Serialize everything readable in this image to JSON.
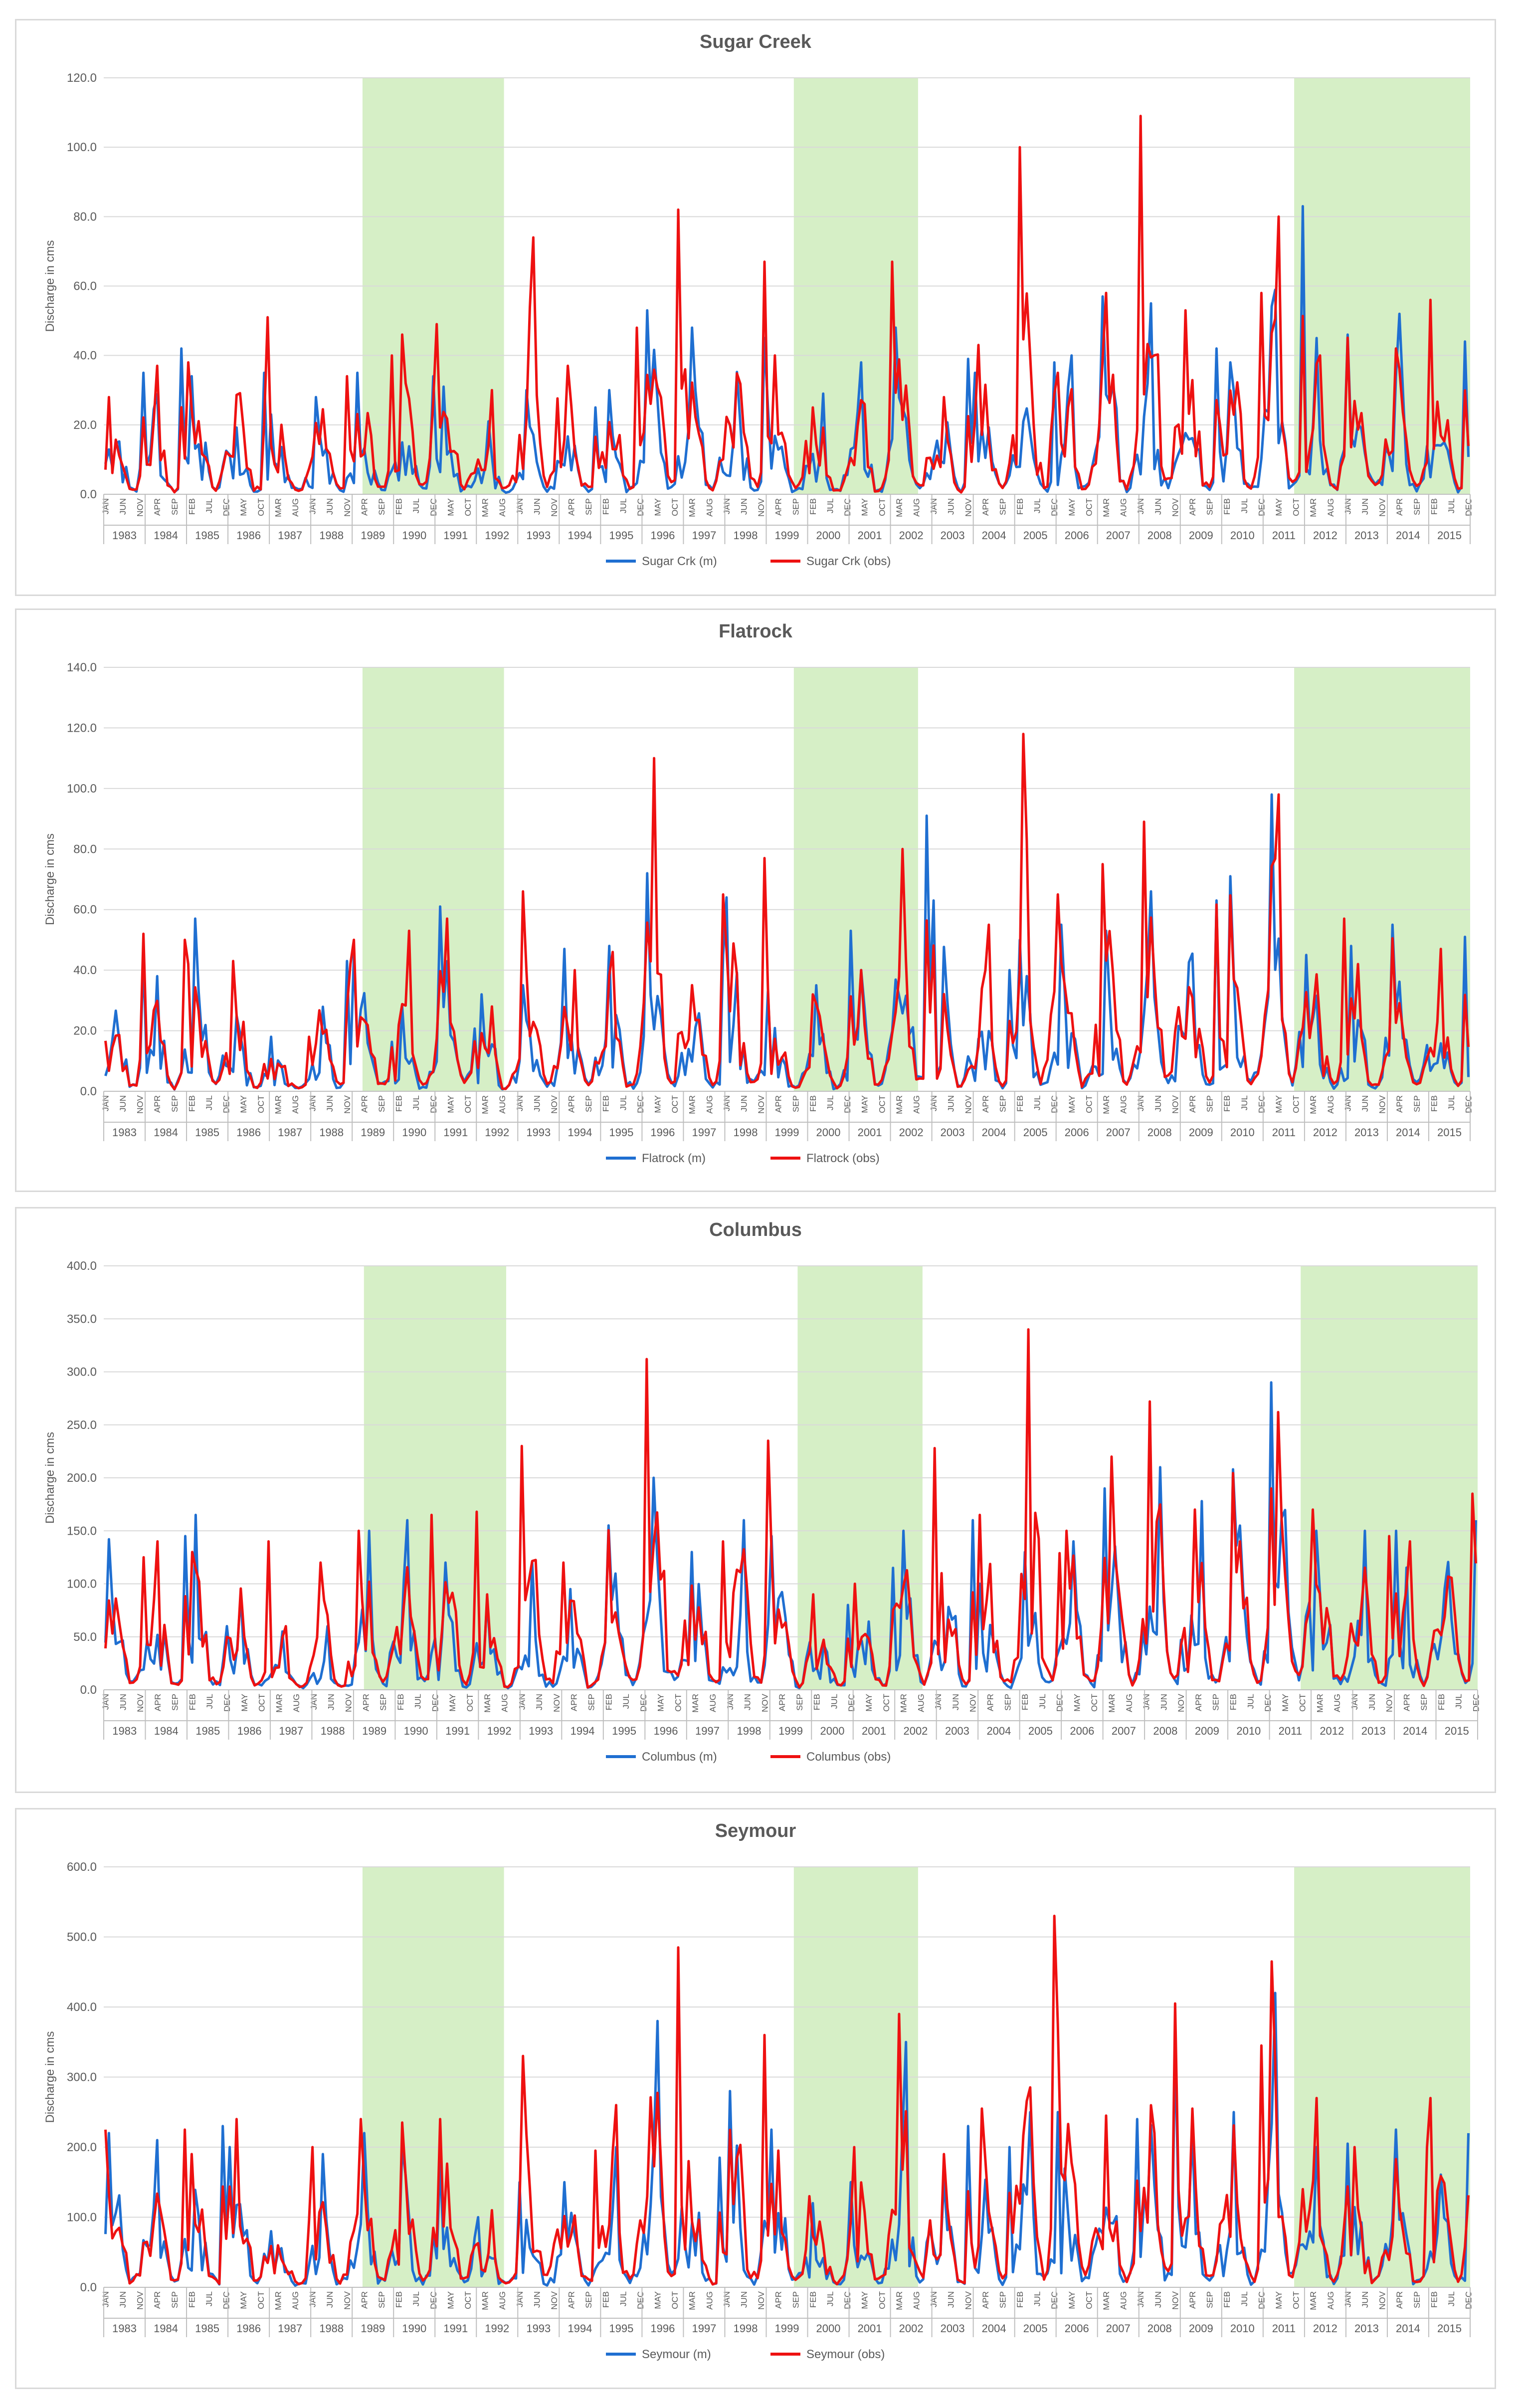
{
  "colors": {
    "modeled": "#1f6fd1",
    "observed": "#ee1111",
    "shade": "#d6efc6",
    "grid": "#d9d9d9",
    "text": "#595959"
  },
  "chart_data": [
    {
      "type": "line",
      "title": "Sugar Creek",
      "ylabel": "Discharge in cms",
      "ylim": [
        0,
        120
      ],
      "ytick_step": 20,
      "yticks": [
        "0.0",
        "20.0",
        "40.0",
        "60.0",
        "80.0",
        "100.0",
        "120.0"
      ],
      "years": [
        "1983",
        "1984",
        "1985",
        "1986",
        "1987",
        "1988",
        "1989",
        "1990",
        "1991",
        "1992",
        "1993",
        "1994",
        "1995",
        "1996",
        "1997",
        "1998",
        "1999",
        "2000",
        "2001",
        "2002",
        "2003",
        "2004",
        "2005",
        "2006",
        "2007",
        "2008",
        "2009",
        "2010",
        "2011",
        "2012",
        "2013",
        "2014",
        "2015"
      ],
      "month_ticks": [
        "JAN",
        "JUN",
        "NOV",
        "APR",
        "SEP",
        "FEB",
        "JUL",
        "DEC",
        "MAY",
        "OCT",
        "MAR",
        "AUG",
        "JAN",
        "JUN",
        "NOV",
        "APR",
        "SEP",
        "FEB",
        "JUL",
        "DEC",
        "MAY",
        "OCT",
        "MAR",
        "AUG",
        "JAN",
        "JUN",
        "NOV",
        "APR",
        "SEP",
        "FEB",
        "JUL",
        "DEC",
        "MAY",
        "OCT",
        "MAR",
        "AUG",
        "JAN",
        "JUN",
        "NOV",
        "APR",
        "SEP",
        "FEB",
        "JUL",
        "DEC",
        "MAY",
        "OCT",
        "MAR",
        "AUG",
        "JAN",
        "JUN",
        "NOV",
        "APR",
        "SEP",
        "FEB",
        "JUL",
        "DEC",
        "MAY",
        "OCT",
        "MAR",
        "AUG",
        "JAN",
        "JUN",
        "NOV",
        "APR",
        "SEP",
        "FEB",
        "JUL",
        "DEC",
        "MAY",
        "OCT",
        "MAR",
        "AUG",
        "JAN",
        "JUN",
        "NOV",
        "APR",
        "SEP",
        "FEB",
        "JUL",
        "DEC"
      ],
      "calibration_periods": [
        [
          "1989-04",
          "1992-08"
        ],
        [
          "1999-09",
          "2002-08"
        ],
        [
          "2011-10",
          "2015-12"
        ]
      ],
      "peaks_obs": {
        "1983": 28,
        "1984": 37,
        "1985": 38,
        "1986": 51,
        "1987": 20,
        "1988": 34,
        "1989": 40,
        "1990": 46,
        "1991": 49,
        "1992": 30,
        "1993": 74,
        "1994": 37,
        "1995": 48,
        "1996": 82,
        "1997": 36,
        "1998": 67,
        "1999": 40,
        "2000": 25,
        "2001": 26,
        "2002": 67,
        "2003": 28,
        "2004": 43,
        "2005": 100,
        "2006": 35,
        "2007": 58,
        "2008": 109,
        "2009": 53,
        "2010": 58,
        "2011": 80,
        "2012": 40,
        "2013": 44,
        "2014": 42,
        "2015": 56
      },
      "peaks_model": {
        "1983": 35,
        "1984": 42,
        "1985": 34,
        "1986": 35,
        "1987": 23,
        "1988": 28,
        "1989": 35,
        "1990": 34,
        "1991": 31,
        "1992": 21,
        "1993": 30,
        "1994": 25,
        "1995": 30,
        "1996": 53,
        "1997": 48,
        "1998": 45,
        "1999": 25,
        "2000": 29,
        "2001": 38,
        "2002": 48,
        "2003": 39,
        "2004": 35,
        "2005": 38,
        "2006": 40,
        "2007": 57,
        "2008": 55,
        "2009": 42,
        "2010": 38,
        "2011": 83,
        "2012": 45,
        "2013": 46,
        "2014": 52,
        "2015": 44
      },
      "series": [
        {
          "name": "Sugar Crk (m)",
          "color": "#1f6fd1"
        },
        {
          "name": "Sugar Crk (obs)",
          "color": "#ee1111"
        }
      ]
    },
    {
      "type": "line",
      "title": "Flatrock",
      "ylabel": "Discharge in cms",
      "ylim": [
        0,
        140
      ],
      "ytick_step": 20,
      "yticks": [
        "0.0",
        "20.0",
        "40.0",
        "60.0",
        "80.0",
        "100.0",
        "120.0",
        "140.0"
      ],
      "years": [
        "1983",
        "1984",
        "1985",
        "1986",
        "1987",
        "1988",
        "1989",
        "1990",
        "1991",
        "1992",
        "1993",
        "1994",
        "1995",
        "1996",
        "1997",
        "1998",
        "1999",
        "2000",
        "2001",
        "2002",
        "2003",
        "2004",
        "2005",
        "2006",
        "2007",
        "2008",
        "2009",
        "2010",
        "2011",
        "2012",
        "2013",
        "2014",
        "2015"
      ],
      "month_ticks": [
        "JAN",
        "JUN",
        "NOV",
        "APR",
        "SEP",
        "FEB",
        "JUL",
        "DEC",
        "MAY",
        "OCT",
        "MAR",
        "AUG",
        "JAN",
        "JUN",
        "NOV",
        "APR",
        "SEP",
        "FEB",
        "JUL",
        "DEC",
        "MAY",
        "OCT",
        "MAR",
        "AUG",
        "JAN",
        "JUN",
        "NOV",
        "APR",
        "SEP",
        "FEB",
        "JUL",
        "DEC",
        "MAY",
        "OCT",
        "MAR",
        "AUG",
        "JAN",
        "JUN",
        "NOV",
        "APR",
        "SEP",
        "FEB",
        "JUL",
        "DEC",
        "MAY",
        "OCT",
        "MAR",
        "AUG",
        "JAN",
        "JUN",
        "NOV",
        "APR",
        "SEP",
        "FEB",
        "JUL",
        "DEC",
        "MAY",
        "OCT",
        "MAR",
        "AUG",
        "JAN",
        "JUN",
        "NOV",
        "APR",
        "SEP",
        "FEB",
        "JUL",
        "DEC",
        "MAY",
        "OCT",
        "MAR",
        "AUG",
        "JAN",
        "JUN",
        "NOV",
        "APR",
        "SEP",
        "FEB",
        "JUL",
        "DEC"
      ],
      "calibration_periods": [
        [
          "1989-04",
          "1992-08"
        ],
        [
          "1999-09",
          "2002-08"
        ],
        [
          "2011-10",
          "2015-12"
        ]
      ],
      "peaks_obs": {
        "1983": 52,
        "1984": 50,
        "1985": 42,
        "1986": 43,
        "1987": 18,
        "1988": 42,
        "1989": 50,
        "1990": 53,
        "1991": 57,
        "1992": 28,
        "1993": 66,
        "1994": 40,
        "1995": 46,
        "1996": 110,
        "1997": 65,
        "1998": 77,
        "1999": 34,
        "2000": 32,
        "2001": 40,
        "2002": 80,
        "2003": 30,
        "2004": 55,
        "2005": 118,
        "2006": 65,
        "2007": 75,
        "2008": 89,
        "2009": 60,
        "2010": 57,
        "2011": 98,
        "2012": 57,
        "2013": 42,
        "2014": 45,
        "2015": 47
      },
      "peaks_model": {
        "1983": 45,
        "1984": 38,
        "1985": 57,
        "1986": 25,
        "1987": 18,
        "1988": 43,
        "1989": 45,
        "1990": 28,
        "1991": 61,
        "1992": 32,
        "1993": 35,
        "1994": 47,
        "1995": 48,
        "1996": 72,
        "1997": 45,
        "1998": 64,
        "1999": 33,
        "2000": 35,
        "2001": 53,
        "2002": 91,
        "2003": 63,
        "2004": 40,
        "2005": 50,
        "2006": 55,
        "2007": 53,
        "2008": 66,
        "2009": 63,
        "2010": 71,
        "2011": 98,
        "2012": 45,
        "2013": 48,
        "2014": 55,
        "2015": 51
      },
      "series": [
        {
          "name": "Flatrock (m)",
          "color": "#1f6fd1"
        },
        {
          "name": "Flatrock (obs)",
          "color": "#ee1111"
        }
      ]
    },
    {
      "type": "line",
      "title": "Columbus",
      "ylabel": "Discharge in cms",
      "ylim": [
        0,
        400
      ],
      "ytick_step": 50,
      "yticks": [
        "0.0",
        "50.0",
        "100.0",
        "150.0",
        "200.0",
        "250.0",
        "300.0",
        "350.0",
        "400.0"
      ],
      "years": [
        "1983",
        "1984",
        "1985",
        "1986",
        "1987",
        "1988",
        "1989",
        "1990",
        "1991",
        "1992",
        "1993",
        "1994",
        "1995",
        "1996",
        "1997",
        "1998",
        "1999",
        "2000",
        "2001",
        "2002",
        "2003",
        "2004",
        "2005",
        "2006",
        "2007",
        "2008",
        "2009",
        "2010",
        "2011",
        "2012",
        "2013",
        "2014",
        "2015"
      ],
      "month_ticks": [
        "JAN",
        "JUN",
        "NOV",
        "APR",
        "SEP",
        "FEB",
        "JUL",
        "DEC",
        "MAY",
        "OCT",
        "MAR",
        "AUG",
        "JAN",
        "JUN",
        "NOV",
        "APR",
        "SEP",
        "FEB",
        "JUL",
        "DEC",
        "MAY",
        "OCT",
        "MAR",
        "AUG",
        "JAN",
        "JUN",
        "NOV",
        "APR",
        "SEP",
        "FEB",
        "JUL",
        "DEC",
        "MAY",
        "OCT",
        "MAR",
        "AUG",
        "JAN",
        "JUN",
        "NOV",
        "APR",
        "SEP",
        "FEB",
        "JUL",
        "DEC",
        "MAY",
        "OCT",
        "MAR",
        "AUG",
        "JAN",
        "JUN",
        "NOV",
        "APR",
        "SEP",
        "FEB",
        "JUL",
        "DEC",
        "MAY",
        "OCT",
        "MAR",
        "AUG",
        "JAN",
        "JUN",
        "NOV",
        "APR",
        "SEP",
        "FEB",
        "JUL",
        "DEC",
        "MAY",
        "OCT",
        "MAR",
        "AUG",
        "JAN",
        "JUN",
        "NOV",
        "APR",
        "SEP",
        "FEB",
        "JUL",
        "DEC"
      ],
      "calibration_periods": [
        [
          "1989-04",
          "1992-08"
        ],
        [
          "1999-09",
          "2002-08"
        ],
        [
          "2011-10",
          "2015-12"
        ]
      ],
      "peaks_obs": {
        "1983": 125,
        "1984": 140,
        "1985": 130,
        "1986": 140,
        "1987": 60,
        "1988": 120,
        "1989": 150,
        "1990": 165,
        "1991": 168,
        "1992": 90,
        "1993": 230,
        "1994": 120,
        "1995": 145,
        "1996": 312,
        "1997": 140,
        "1998": 235,
        "1999": 110,
        "2000": 90,
        "2001": 100,
        "2002": 228,
        "2003": 110,
        "2004": 165,
        "2005": 340,
        "2006": 150,
        "2007": 220,
        "2008": 272,
        "2009": 170,
        "2010": 200,
        "2011": 262,
        "2012": 170,
        "2013": 145,
        "2014": 140,
        "2015": 185
      },
      "peaks_model": {
        "1983": 142,
        "1984": 145,
        "1985": 165,
        "1986": 90,
        "1987": 55,
        "1988": 60,
        "1989": 150,
        "1990": 160,
        "1991": 120,
        "1992": 85,
        "1993": 120,
        "1994": 95,
        "1995": 155,
        "1996": 200,
        "1997": 130,
        "1998": 160,
        "1999": 145,
        "2000": 80,
        "2001": 115,
        "2002": 150,
        "2003": 160,
        "2004": 100,
        "2005": 130,
        "2006": 140,
        "2007": 190,
        "2008": 210,
        "2009": 178,
        "2010": 208,
        "2011": 290,
        "2012": 150,
        "2013": 150,
        "2014": 150,
        "2015": 160
      },
      "series": [
        {
          "name": "Columbus (m)",
          "color": "#1f6fd1"
        },
        {
          "name": "Columbus (obs)",
          "color": "#ee1111"
        }
      ]
    },
    {
      "type": "line",
      "title": "Seymour",
      "ylabel": "Discharge in cms",
      "ylim": [
        0,
        600
      ],
      "ytick_step": 100,
      "yticks": [
        "0.0",
        "100.0",
        "200.0",
        "300.0",
        "400.0",
        "500.0",
        "600.0"
      ],
      "years": [
        "1983",
        "1984",
        "1985",
        "1986",
        "1987",
        "1988",
        "1989",
        "1990",
        "1991",
        "1992",
        "1993",
        "1994",
        "1995",
        "1996",
        "1997",
        "1998",
        "1999",
        "2000",
        "2001",
        "2002",
        "2003",
        "2004",
        "2005",
        "2006",
        "2007",
        "2008",
        "2009",
        "2010",
        "2011",
        "2012",
        "2013",
        "2014",
        "2015"
      ],
      "month_ticks": [
        "JAN",
        "JUN",
        "NOV",
        "APR",
        "SEP",
        "FEB",
        "JUL",
        "DEC",
        "MAY",
        "OCT",
        "MAR",
        "AUG",
        "JAN",
        "JUN",
        "NOV",
        "APR",
        "SEP",
        "FEB",
        "JUL",
        "DEC",
        "MAY",
        "OCT",
        "MAR",
        "AUG",
        "JAN",
        "JUN",
        "NOV",
        "APR",
        "SEP",
        "FEB",
        "JUL",
        "DEC",
        "MAY",
        "OCT",
        "MAR",
        "AUG",
        "JAN",
        "JUN",
        "NOV",
        "APR",
        "SEP",
        "FEB",
        "JUL",
        "DEC",
        "MAY",
        "OCT",
        "MAR",
        "AUG",
        "JAN",
        "JUN",
        "NOV",
        "APR",
        "SEP",
        "FEB",
        "JUL",
        "DEC",
        "MAY",
        "OCT",
        "MAR",
        "AUG",
        "JAN",
        "JUN",
        "NOV",
        "APR",
        "SEP",
        "FEB",
        "JUL",
        "DEC",
        "MAY",
        "OCT",
        "MAR",
        "AUG",
        "JAN",
        "JUN",
        "NOV",
        "APR",
        "SEP",
        "FEB",
        "JUL",
        "DEC"
      ],
      "calibration_periods": [
        [
          "1989-04",
          "1992-08"
        ],
        [
          "1999-09",
          "2002-08"
        ],
        [
          "2011-10",
          "2015-12"
        ]
      ],
      "peaks_obs": {
        "1983": 225,
        "1984": 225,
        "1985": 190,
        "1986": 240,
        "1987": 95,
        "1988": 200,
        "1989": 240,
        "1990": 235,
        "1991": 240,
        "1992": 110,
        "1993": 330,
        "1994": 195,
        "1995": 260,
        "1996": 485,
        "1997": 180,
        "1998": 360,
        "1999": 195,
        "2000": 130,
        "2001": 200,
        "2002": 390,
        "2003": 190,
        "2004": 255,
        "2005": 530,
        "2006": 375,
        "2007": 245,
        "2008": 405,
        "2009": 255,
        "2010": 345,
        "2011": 465,
        "2012": 270,
        "2013": 200,
        "2014": 200,
        "2015": 270
      },
      "peaks_model": {
        "1983": 220,
        "1984": 210,
        "1985": 230,
        "1986": 200,
        "1987": 80,
        "1988": 190,
        "1989": 220,
        "1990": 200,
        "1991": 180,
        "1992": 100,
        "1993": 150,
        "1994": 150,
        "1995": 200,
        "1996": 380,
        "1997": 185,
        "1998": 280,
        "1999": 225,
        "2000": 120,
        "2001": 150,
        "2002": 350,
        "2003": 230,
        "2004": 200,
        "2005": 250,
        "2006": 250,
        "2007": 240,
        "2008": 350,
        "2009": 220,
        "2010": 250,
        "2011": 420,
        "2012": 200,
        "2013": 205,
        "2014": 225,
        "2015": 220
      },
      "series": [
        {
          "name": "Seymour (m)",
          "color": "#1f6fd1"
        },
        {
          "name": "Seymour (obs)",
          "color": "#ee1111"
        }
      ]
    }
  ]
}
